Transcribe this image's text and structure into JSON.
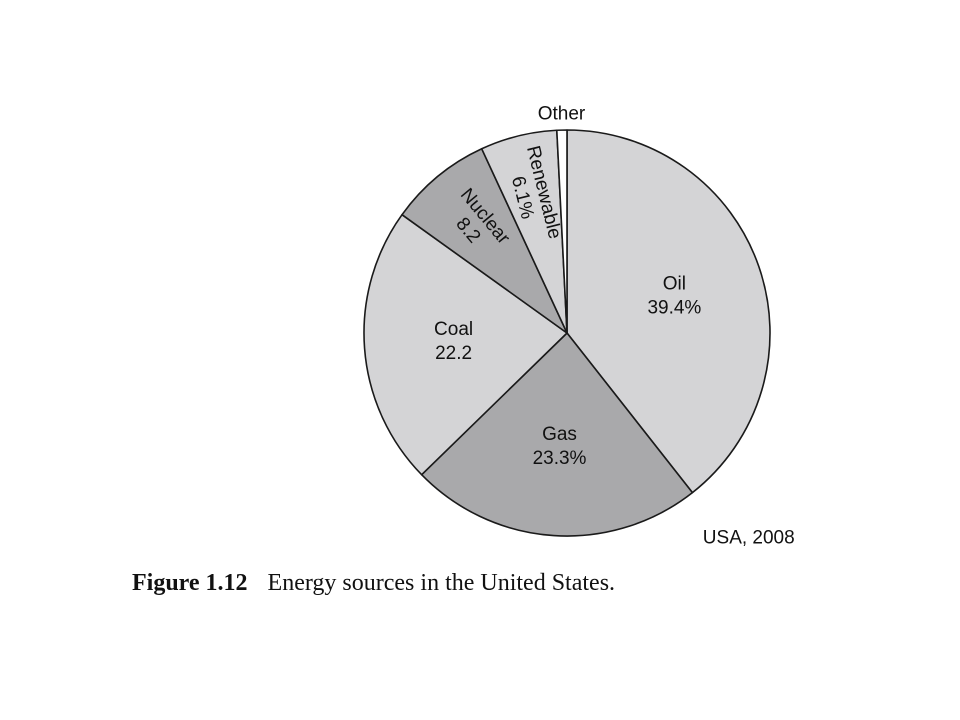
{
  "chart_data": {
    "type": "pie",
    "title": "",
    "note": "USA, 2008",
    "slices": [
      {
        "name": "Oil",
        "value": 39.4,
        "value_label": "39.4%",
        "color": "#d4d4d6"
      },
      {
        "name": "Gas",
        "value": 23.3,
        "value_label": "23.3%",
        "color": "#a9a9ab"
      },
      {
        "name": "Coal",
        "value": 22.2,
        "value_label": "22.2",
        "color": "#d4d4d6"
      },
      {
        "name": "Nuclear",
        "value": 8.2,
        "value_label": "8.2",
        "color": "#a9a9ab"
      },
      {
        "name": "Renewable",
        "value": 6.1,
        "value_label": "6.1%",
        "color": "#d4d4d6"
      },
      {
        "name": "Other",
        "value": 0.8,
        "value_label": "",
        "color": "#ffffff"
      }
    ]
  },
  "caption": {
    "figure_number": "Figure 1.12",
    "text": "Energy sources in the United States."
  }
}
